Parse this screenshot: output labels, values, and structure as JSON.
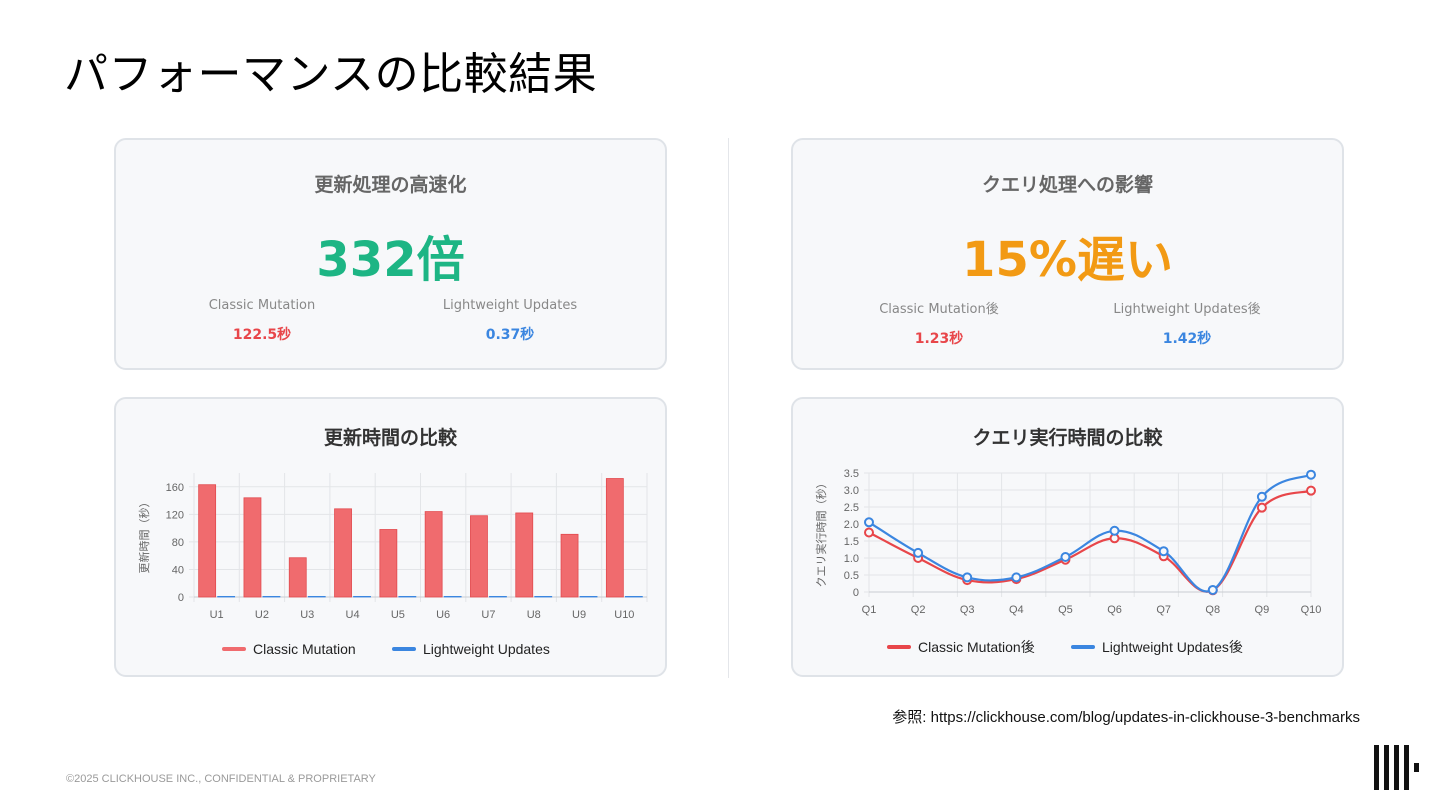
{
  "slide": {
    "title": "パフォーマンスの比較結果",
    "reference": "参照: https://clickhouse.com/blog/updates-in-clickhouse-3-benchmarks",
    "footer": "©2025 CLICKHOUSE INC., CONFIDENTIAL & PROPRIETARY"
  },
  "update_stat": {
    "title": "更新処理の高速化",
    "value": "332倍",
    "value_color": "#1db584",
    "left_label": "Classic Mutation",
    "left_value": "122.5秒",
    "left_color": "#e8464a",
    "right_label": "Lightweight Updates",
    "right_value": "0.37秒",
    "right_color": "#3b86e0"
  },
  "query_stat": {
    "title": "クエリ処理への影響",
    "value": "15%遅い",
    "value_color": "#f29a14",
    "left_label": "Classic Mutation後",
    "left_value": "1.23秒",
    "left_color": "#e8464a",
    "right_label": "Lightweight Updates後",
    "right_value": "1.42秒",
    "right_color": "#3b86e0"
  },
  "chart_data": [
    {
      "type": "bar",
      "title": "更新時間の比較",
      "ylabel": "更新時間（秒）",
      "xlabel": "",
      "categories": [
        "U1",
        "U2",
        "U3",
        "U4",
        "U5",
        "U6",
        "U7",
        "U8",
        "U9",
        "U10"
      ],
      "yticks": [
        0,
        40,
        80,
        120,
        160
      ],
      "ylim": [
        0,
        180
      ],
      "grid": true,
      "legend": "bottom",
      "series": [
        {
          "name": "Classic Mutation",
          "color": "#f06b6e",
          "values": [
            163,
            144,
            57,
            128,
            98,
            124,
            118,
            122,
            91,
            172
          ]
        },
        {
          "name": "Lightweight Updates",
          "color": "#3b86e0",
          "values": [
            0.3,
            0.4,
            0.3,
            0.4,
            0.3,
            0.4,
            0.4,
            0.3,
            0.4,
            0.5
          ]
        }
      ]
    },
    {
      "type": "line",
      "title": "クエリ実行時間の比較",
      "ylabel": "クエリ実行時間（秒）",
      "xlabel": "",
      "categories": [
        "Q1",
        "Q2",
        "Q3",
        "Q4",
        "Q5",
        "Q6",
        "Q7",
        "Q8",
        "Q9",
        "Q10"
      ],
      "yticks": [
        0,
        0.5,
        1.0,
        1.5,
        2.0,
        2.5,
        3.0,
        3.5
      ],
      "ytick_labels": [
        "0",
        "0.5",
        "1.0",
        "1.5",
        "2.0",
        "2.5",
        "3.0",
        "3.5"
      ],
      "ylim": [
        0,
        3.5
      ],
      "grid": true,
      "legend": "bottom",
      "series": [
        {
          "name": "Classic Mutation後",
          "color": "#e8464a",
          "values": [
            1.75,
            1.0,
            0.35,
            0.38,
            0.95,
            1.58,
            1.05,
            0.05,
            2.48,
            2.98
          ]
        },
        {
          "name": "Lightweight Updates後",
          "color": "#3b86e0",
          "values": [
            2.05,
            1.15,
            0.43,
            0.43,
            1.03,
            1.8,
            1.2,
            0.06,
            2.8,
            3.45
          ]
        }
      ]
    }
  ]
}
